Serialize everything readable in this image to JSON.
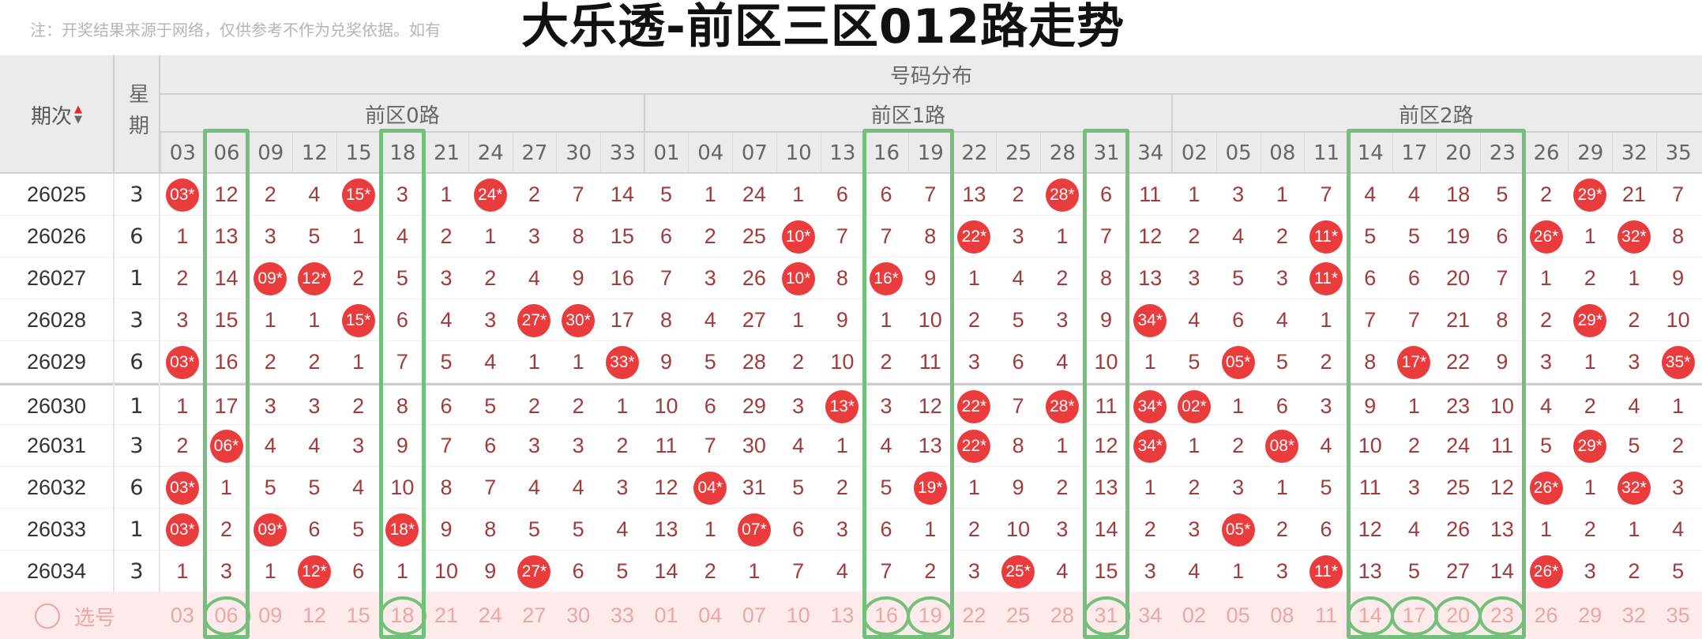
{
  "note": "注：开奖结果来源于网络，仅供参考不作为兑奖依据。如有",
  "title": "大乐透-前区三区012路走势",
  "header": {
    "period": "期次",
    "sort_icon": "sort-up-down-icon",
    "week": "星期",
    "distribution": "号码分布",
    "groups": [
      {
        "label": "前区0路",
        "numbers": [
          "03",
          "06",
          "09",
          "12",
          "15",
          "18",
          "21",
          "24",
          "27",
          "30",
          "33"
        ]
      },
      {
        "label": "前区1路",
        "numbers": [
          "01",
          "04",
          "07",
          "10",
          "13",
          "16",
          "19",
          "22",
          "25",
          "28",
          "31",
          "34"
        ]
      },
      {
        "label": "前区2路",
        "numbers": [
          "02",
          "05",
          "08",
          "11",
          "14",
          "17",
          "20",
          "23",
          "26",
          "29",
          "32",
          "35"
        ]
      }
    ]
  },
  "rows": [
    {
      "period": "26025",
      "week": "3",
      "cells": [
        "03*",
        "12",
        "2",
        "4",
        "15*",
        "3",
        "1",
        "24*",
        "2",
        "7",
        "14",
        "5",
        "1",
        "24",
        "1",
        "6",
        "6",
        "7",
        "13",
        "2",
        "28*",
        "6",
        "11",
        "1",
        "3",
        "1",
        "7",
        "4",
        "4",
        "18",
        "5",
        "2",
        "29*",
        "21",
        "7"
      ]
    },
    {
      "period": "26026",
      "week": "6",
      "cells": [
        "1",
        "13",
        "3",
        "5",
        "1",
        "4",
        "2",
        "1",
        "3",
        "8",
        "15",
        "6",
        "2",
        "25",
        "10*",
        "7",
        "7",
        "8",
        "22*",
        "3",
        "1",
        "7",
        "12",
        "2",
        "4",
        "2",
        "11*",
        "5",
        "5",
        "19",
        "6",
        "26*",
        "1",
        "32*",
        "8"
      ]
    },
    {
      "period": "26027",
      "week": "1",
      "cells": [
        "2",
        "14",
        "09*",
        "12*",
        "2",
        "5",
        "3",
        "2",
        "4",
        "9",
        "16",
        "7",
        "3",
        "26",
        "10*",
        "8",
        "16*",
        "9",
        "1",
        "4",
        "2",
        "8",
        "13",
        "3",
        "5",
        "3",
        "11*",
        "6",
        "6",
        "20",
        "7",
        "1",
        "2",
        "1",
        "9"
      ]
    },
    {
      "period": "26028",
      "week": "3",
      "cells": [
        "3",
        "15",
        "1",
        "1",
        "15*",
        "6",
        "4",
        "3",
        "27*",
        "30*",
        "17",
        "8",
        "4",
        "27",
        "1",
        "9",
        "1",
        "10",
        "2",
        "5",
        "3",
        "9",
        "34*",
        "4",
        "6",
        "4",
        "1",
        "7",
        "7",
        "21",
        "8",
        "2",
        "29*",
        "2",
        "10"
      ]
    },
    {
      "period": "26029",
      "week": "6",
      "cells": [
        "03*",
        "16",
        "2",
        "2",
        "1",
        "7",
        "5",
        "4",
        "1",
        "1",
        "33*",
        "9",
        "5",
        "28",
        "2",
        "10",
        "2",
        "11",
        "3",
        "6",
        "4",
        "10",
        "1",
        "5",
        "05*",
        "5",
        "2",
        "8",
        "17*",
        "22",
        "9",
        "3",
        "1",
        "3",
        "35*"
      ]
    },
    {
      "period": "26030",
      "week": "1",
      "cells": [
        "1",
        "17",
        "3",
        "3",
        "2",
        "8",
        "6",
        "5",
        "2",
        "2",
        "1",
        "10",
        "6",
        "29",
        "3",
        "13*",
        "3",
        "12",
        "22*",
        "7",
        "28*",
        "11",
        "34*",
        "02*",
        "1",
        "6",
        "3",
        "9",
        "1",
        "23",
        "10",
        "4",
        "2",
        "4",
        "1"
      ]
    },
    {
      "period": "26031",
      "week": "3",
      "cells": [
        "2",
        "06*",
        "4",
        "4",
        "3",
        "9",
        "7",
        "6",
        "3",
        "3",
        "2",
        "11",
        "7",
        "30",
        "4",
        "1",
        "4",
        "13",
        "22*",
        "8",
        "1",
        "12",
        "34*",
        "1",
        "2",
        "08*",
        "4",
        "10",
        "2",
        "24",
        "11",
        "5",
        "29*",
        "5",
        "2"
      ]
    },
    {
      "period": "26032",
      "week": "6",
      "cells": [
        "03*",
        "1",
        "5",
        "5",
        "4",
        "10",
        "8",
        "7",
        "4",
        "4",
        "3",
        "12",
        "04*",
        "31",
        "5",
        "2",
        "5",
        "19*",
        "1",
        "9",
        "2",
        "13",
        "1",
        "2",
        "3",
        "1",
        "5",
        "11",
        "3",
        "25",
        "12",
        "26*",
        "1",
        "32*",
        "3"
      ]
    },
    {
      "period": "26033",
      "week": "1",
      "cells": [
        "03*",
        "2",
        "09*",
        "6",
        "5",
        "18*",
        "9",
        "8",
        "5",
        "5",
        "4",
        "13",
        "1",
        "07*",
        "6",
        "3",
        "6",
        "1",
        "2",
        "10",
        "3",
        "14",
        "2",
        "3",
        "05*",
        "2",
        "6",
        "12",
        "4",
        "26",
        "13",
        "1",
        "2",
        "1",
        "4"
      ]
    },
    {
      "period": "26034",
      "week": "3",
      "cells": [
        "1",
        "3",
        "1",
        "12*",
        "6",
        "1",
        "10",
        "9",
        "27*",
        "6",
        "5",
        "14",
        "2",
        "1",
        "7",
        "4",
        "7",
        "2",
        "3",
        "25*",
        "4",
        "15",
        "3",
        "4",
        "1",
        "3",
        "11*",
        "13",
        "5",
        "27",
        "14",
        "26*",
        "3",
        "2",
        "5"
      ]
    }
  ],
  "select": {
    "label": "选号",
    "icon": "radio-circle-icon"
  },
  "highlighted": [
    "06",
    "18",
    "16",
    "19",
    "31",
    "14",
    "17",
    "20",
    "23"
  ],
  "colors": {
    "hit": "#ea3c3c",
    "miss": "#a33a3a",
    "highlight": "#72c07a",
    "select_bg": "#fdeaea"
  }
}
